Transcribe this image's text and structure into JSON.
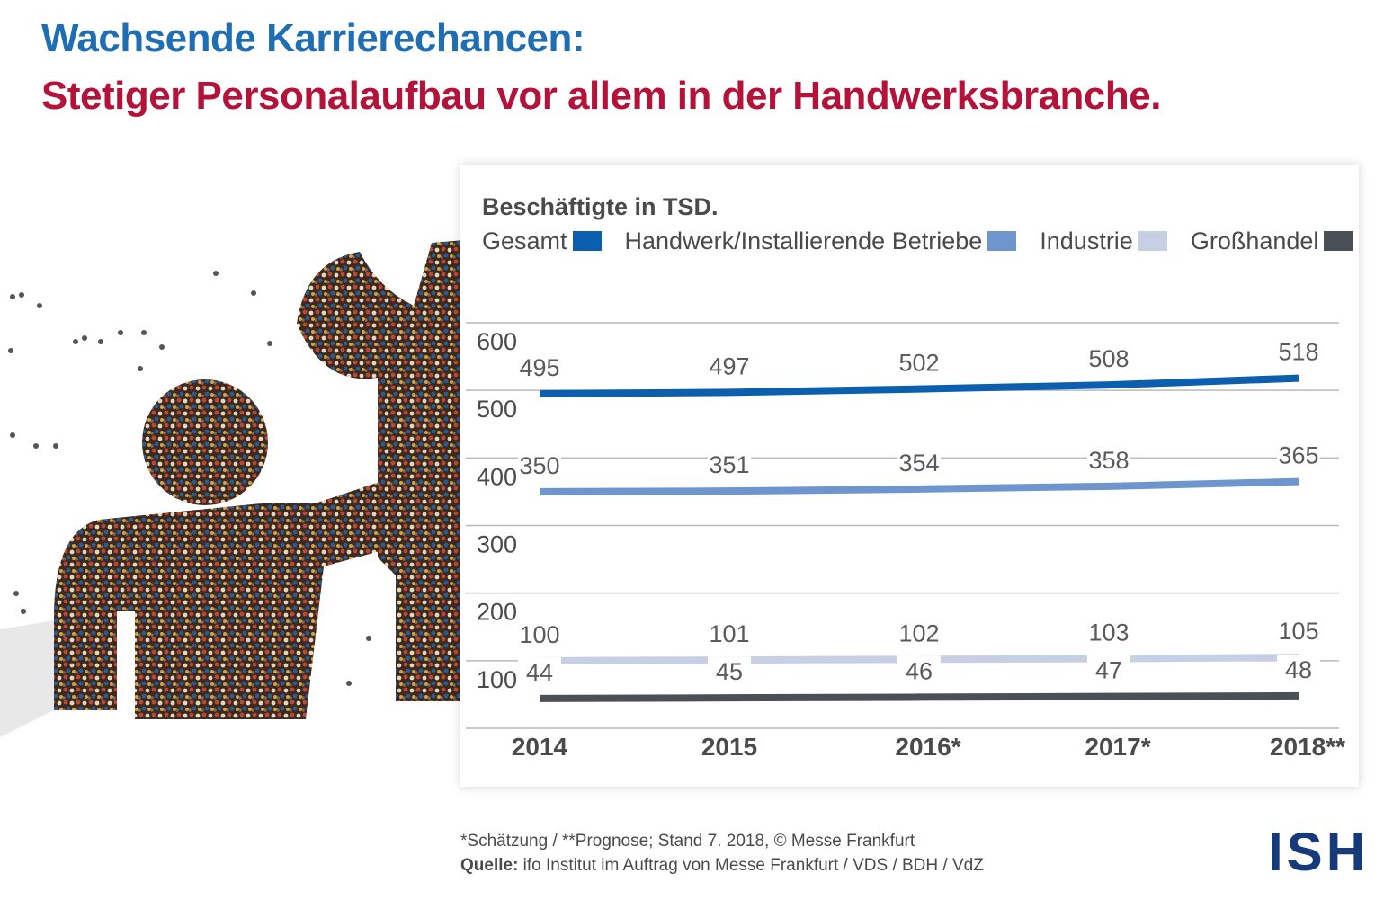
{
  "header": {
    "title_line1": "Wachsende Karrierechancen:",
    "title_line2": "Stetiger Personalaufbau vor allem in der Handwerksbranche."
  },
  "colors": {
    "title_blue": "#1f6db3",
    "title_red": "#b5123a",
    "text_gray": "#4a4a4a",
    "grid": "#b9b9b9"
  },
  "footer": {
    "footnote": "*Schätzung / **Prognose; Stand 7. 2018, © Messe Frankfurt",
    "source_label": "Quelle:",
    "source_text": " ifo Institut im Auftrag von Messe Frankfurt / VDS / BDH / VdZ",
    "logo_text": "ISH",
    "logo_color": "#173a7a"
  },
  "chart_data": {
    "type": "line",
    "unit_label": "Beschäftigte in TSD.",
    "categories": [
      "2014",
      "2015",
      "2016*",
      "2017*",
      "2018**"
    ],
    "y_ticks": [
      "600",
      "500",
      "400",
      "300",
      "200",
      "100"
    ],
    "ylim": [
      0,
      600
    ],
    "grid": true,
    "legend_position": "top",
    "series": [
      {
        "name": "Gesamt",
        "color": "#0b5fae",
        "values": [
          495,
          497,
          502,
          508,
          518
        ]
      },
      {
        "name": "Handwerk/Installierende Betriebe",
        "color": "#6f95cf",
        "values": [
          350,
          351,
          354,
          358,
          365
        ]
      },
      {
        "name": "Industrie",
        "color": "#c7cfe4",
        "values": [
          100,
          101,
          102,
          103,
          105
        ]
      },
      {
        "name": "Großhandel",
        "color": "#4b4f57",
        "values": [
          44,
          45,
          46,
          47,
          48
        ]
      }
    ]
  }
}
